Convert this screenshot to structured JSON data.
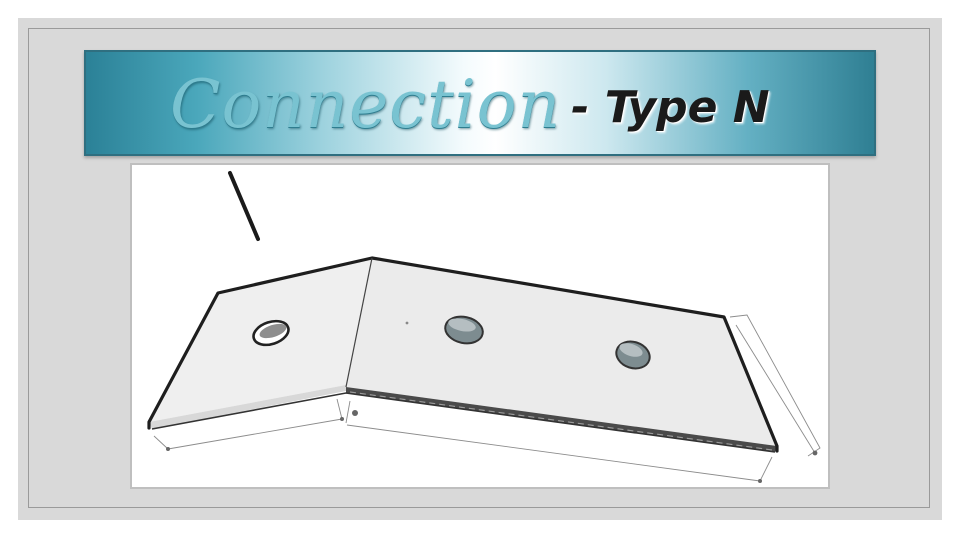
{
  "slide": {
    "title_main": "Connection",
    "title_sub": "- Type N"
  },
  "diagram": {
    "subject": "bent connection plate with three bolt holes",
    "hole_count": 3
  }
}
